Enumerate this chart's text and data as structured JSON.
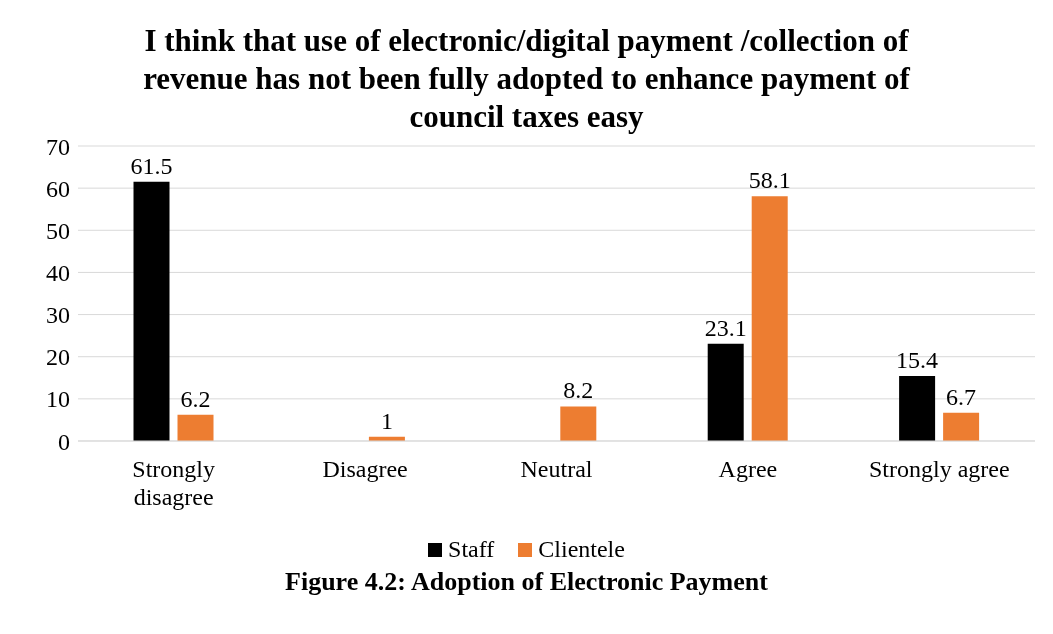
{
  "chart_data": {
    "type": "bar",
    "title": "I think that use of electronic/digital payment /collection of revenue has not been fully adopted to enhance payment of council taxes easy",
    "categories": [
      "Strongly disagree",
      "Disagree",
      "Neutral",
      "Agree",
      "Strongly agree"
    ],
    "series": [
      {
        "name": "Staff",
        "color": "#000000",
        "values": [
          61.5,
          null,
          null,
          23.1,
          15.4
        ]
      },
      {
        "name": "Clientele",
        "color": "#ed7d31",
        "values": [
          6.2,
          1,
          8.2,
          58.1,
          6.7
        ]
      }
    ],
    "ylim": [
      0,
      70
    ],
    "yticks": [
      0,
      10,
      20,
      30,
      40,
      50,
      60,
      70
    ],
    "grid": "y",
    "legend": "bottom",
    "data_labels": true,
    "annotations": [
      "Figure 4.2: Adoption of Electronic Payment"
    ]
  }
}
